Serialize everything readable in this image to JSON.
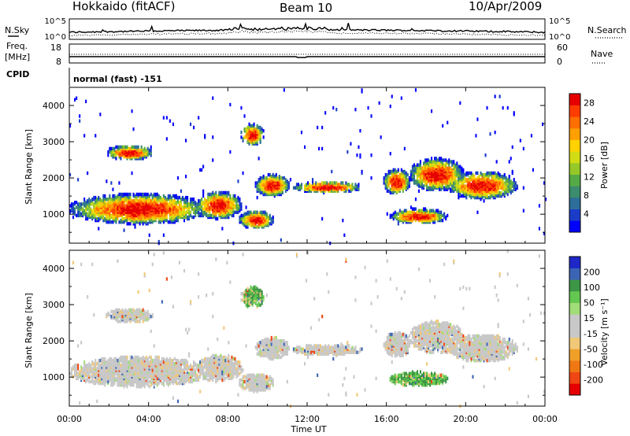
{
  "header": {
    "station": "Hokkaido (fitACF)",
    "beam": "Beam 10",
    "date": "10/Apr/2009"
  },
  "noise_panel": {
    "left_label": "N.Sky",
    "right_label": "N.Search",
    "scale_top": "10^5",
    "scale_bottom": "10^0",
    "right_scale_top": "10^5",
    "right_scale_bottom": "10^0"
  },
  "freq_panel": {
    "left_label_line1": "Freq.",
    "left_label_line2": "[MHz]",
    "right_label": "Nave",
    "left_ticks": [
      "18",
      "8"
    ],
    "right_ticks": [
      "60",
      "0"
    ]
  },
  "cpid": {
    "label": "CPID",
    "value": "normal (fast) -151"
  },
  "x_axis": {
    "label": "Time UT",
    "ticks": [
      "00:00",
      "04:00",
      "08:00",
      "12:00",
      "16:00",
      "20:00",
      "00:00"
    ]
  },
  "chart_data": [
    {
      "type": "heatmap",
      "name": "power",
      "ylabel": "Slant Range [km]",
      "yticks": [
        1000,
        2000,
        3000,
        4000
      ],
      "ylim": [
        200,
        4500
      ],
      "xlim_hours": [
        0,
        24
      ],
      "colorbar": {
        "label": "Power [dB]",
        "ticks": [
          "4",
          "8",
          "12",
          "16",
          "20",
          "24",
          "28"
        ],
        "colors": [
          "#0000ff",
          "#1a3cc8",
          "#2d6e9a",
          "#3c8c6e",
          "#55aa46",
          "#96c828",
          "#d2dc14",
          "#ffd200",
          "#ffa000",
          "#ff6e00",
          "#ff3c00",
          "#e60000"
        ]
      }
    },
    {
      "type": "heatmap",
      "name": "velocity",
      "ylabel": "Slant Range [km]",
      "yticks": [
        1000,
        2000,
        3000,
        4000
      ],
      "ylim": [
        200,
        4500
      ],
      "xlim_hours": [
        0,
        24
      ],
      "colorbar": {
        "label": "Velocity [m s⁻¹]",
        "ticks": [
          "200",
          "100",
          "50",
          "15",
          "-15",
          "-50",
          "-100",
          "-200"
        ],
        "colors": [
          "#1e28c8",
          "#3c64b4",
          "#3c9646",
          "#64c850",
          "#a0dc78",
          "#c8c8c8",
          "#c8c8c8",
          "#f0c878",
          "#f0a028",
          "#f07814",
          "#f04614",
          "#e60000"
        ]
      }
    }
  ]
}
